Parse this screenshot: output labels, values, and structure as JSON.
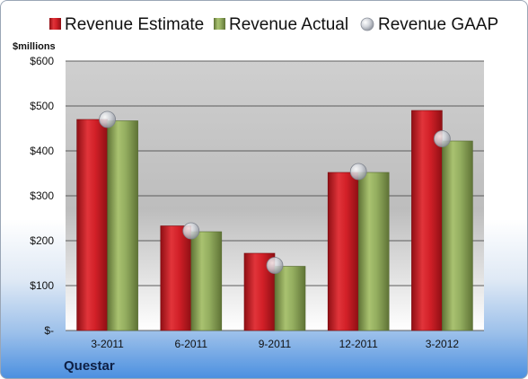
{
  "chart_data": {
    "type": "bar",
    "categories": [
      "3-2011",
      "6-2011",
      "9-2011",
      "12-2011",
      "3-2012"
    ],
    "series": [
      {
        "name": "Revenue Estimate",
        "values": [
          470,
          233,
          172,
          352,
          490
        ],
        "color": "#cc1f25"
      },
      {
        "name": "Revenue Actual",
        "values": [
          467,
          220,
          143,
          352,
          422
        ],
        "color": "#8ea85a"
      },
      {
        "name": "Revenue GAAP",
        "values": [
          470,
          222,
          145,
          354,
          427
        ],
        "color": "#c8ccd4",
        "marker": "circle"
      }
    ],
    "ylabel": "$millions",
    "ylim": [
      0,
      600
    ],
    "yticks": [
      0,
      100,
      200,
      300,
      400,
      500,
      600
    ],
    "ytick_labels": [
      "$-",
      "$100",
      "$200",
      "$300",
      "$400",
      "$500",
      "$600"
    ],
    "grid": true,
    "legend_position": "top"
  },
  "footer": {
    "company": "Questar"
  }
}
